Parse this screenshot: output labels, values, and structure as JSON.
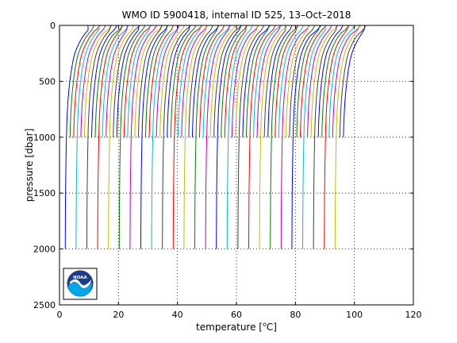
{
  "chart_data": {
    "type": "line",
    "title": "WMO ID 5900418, internal ID 525, 13–Oct–2018",
    "xlabel_prefix": "temperature [",
    "xlabel_sup": "o",
    "xlabel_suffix": "C]",
    "ylabel": "pressure [dbar]",
    "xlim": [
      0,
      120
    ],
    "ylim": [
      0,
      2500
    ],
    "y_reversed": true,
    "xticks": [
      0,
      20,
      40,
      60,
      80,
      100,
      120
    ],
    "yticks": [
      0,
      500,
      1000,
      1500,
      2000,
      2500
    ],
    "grid": "dotted",
    "note": "Waterfall plot: successive temperature profiles offset along the x-axis",
    "profiles": {
      "count": 78,
      "first_offset": 0,
      "offset_step": 1.22,
      "deep_profile_every": 3,
      "deep_max_pressure": 2000,
      "shallow_max_pressure": 1000
    },
    "reference_profile": {
      "pressure": [
        0,
        20,
        40,
        60,
        80,
        100,
        150,
        200,
        250,
        300,
        400,
        500,
        600,
        700,
        800,
        900,
        1000,
        1200,
        1500,
        1700,
        2000
      ],
      "temperature": [
        10.2,
        10.0,
        9.7,
        9.1,
        8.5,
        7.9,
        6.8,
        5.9,
        5.2,
        4.7,
        4.0,
        3.5,
        3.1,
        2.8,
        2.6,
        2.45,
        2.35,
        2.2,
        2.05,
        2.0,
        1.95
      ]
    },
    "colors": [
      "#0000ff",
      "#007f00",
      "#ff0000",
      "#00bfbf",
      "#bf00bf",
      "#bfbf00",
      "#3f3f3f"
    ]
  },
  "logo": {
    "text": "NOAA",
    "colors": {
      "outer": "#1a3c8c",
      "sea": "#00a6e6",
      "sky": "#ffffff"
    }
  }
}
